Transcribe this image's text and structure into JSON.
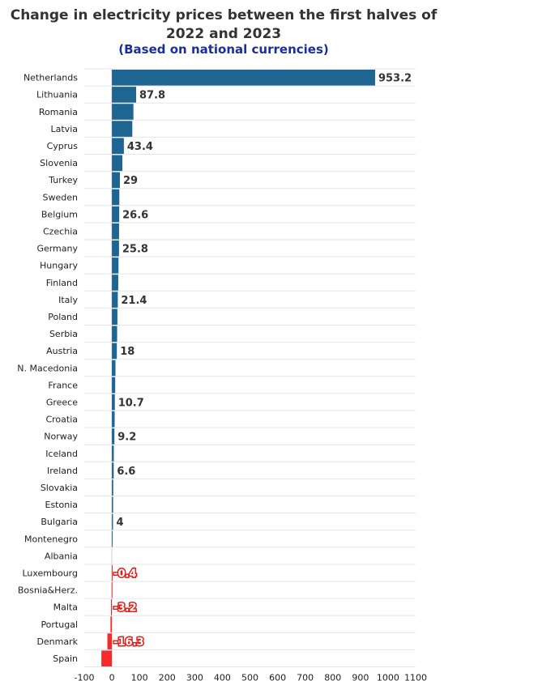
{
  "chart_data": {
    "type": "bar",
    "orientation": "horizontal",
    "title": "Change in electricity prices between the first halves of 2022 and 2023",
    "title_lines": [
      "Change in electricity prices between the first halves of",
      "2022 and 2023"
    ],
    "subtitle": "(Based on national currencies)",
    "categories": [
      "Netherlands",
      "Lithuania",
      "Romania",
      "Latvia",
      "Cyprus",
      "Slovenia",
      "Turkey",
      "Sweden",
      "Belgium",
      "Czechia",
      "Germany",
      "Hungary",
      "Finland",
      "Italy",
      "Poland",
      "Serbia",
      "Austria",
      "N. Macedonia",
      "France",
      "Greece",
      "Croatia",
      "Norway",
      "Iceland",
      "Ireland",
      "Slovakia",
      "Estonia",
      "Bulgaria",
      "Montenegro",
      "Albania",
      "Luxembourg",
      "Bosnia&Herz.",
      "Malta",
      "Portugal",
      "Denmark",
      "Spain"
    ],
    "values": [
      953.2,
      87.8,
      78,
      74,
      43.4,
      38,
      29,
      27,
      26.6,
      26,
      25.8,
      24,
      23,
      21.4,
      20,
      19,
      18,
      13,
      12,
      10.7,
      10,
      9.2,
      7,
      6.6,
      5,
      4.5,
      4,
      1,
      0,
      -0.4,
      -1,
      -3.2,
      -5,
      -16.3,
      -38
    ],
    "data_labels": [
      {
        "category": "Netherlands",
        "text": "953.2"
      },
      {
        "category": "Lithuania",
        "text": "87.8"
      },
      {
        "category": "Cyprus",
        "text": "43.4"
      },
      {
        "category": "Turkey",
        "text": "29"
      },
      {
        "category": "Belgium",
        "text": "26.6"
      },
      {
        "category": "Germany",
        "text": "25.8"
      },
      {
        "category": "Italy",
        "text": "21.4"
      },
      {
        "category": "Austria",
        "text": "18"
      },
      {
        "category": "Greece",
        "text": "10.7"
      },
      {
        "category": "Norway",
        "text": "9.2"
      },
      {
        "category": "Ireland",
        "text": "6.6"
      },
      {
        "category": "Bulgaria",
        "text": "4"
      },
      {
        "category": "Luxembourg",
        "text": "-0.4"
      },
      {
        "category": "Malta",
        "text": "-3.2"
      },
      {
        "category": "Denmark",
        "text": "-16.3"
      }
    ],
    "xlim": [
      -100,
      1100
    ],
    "xticks": [
      -100,
      0,
      100,
      200,
      300,
      400,
      500,
      600,
      700,
      800,
      900,
      1000,
      1100
    ],
    "colors": {
      "positive": "#1f6592",
      "negative": "#f52a2a",
      "grid": "#e6e6e6",
      "negative_label_outline": "#e0201b"
    },
    "grid": true,
    "legend": "none"
  }
}
